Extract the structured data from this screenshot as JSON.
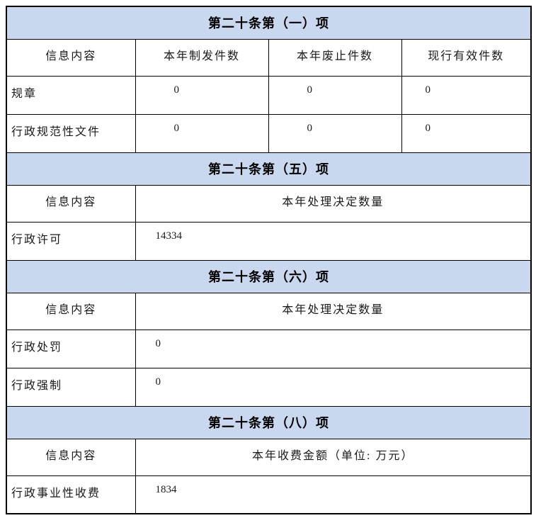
{
  "table": {
    "colors": {
      "section_header_bg": "#C9D8EF",
      "border": "#000000",
      "text": "#1A1A1A"
    },
    "sections": [
      {
        "title": "第二十条第（一）项",
        "columns": [
          "信息内容",
          "本年制发件数",
          "本年废止件数",
          "现行有效件数"
        ],
        "rows": [
          {
            "label": "规章",
            "values": [
              "0",
              "0",
              "0"
            ]
          },
          {
            "label": "行政规范性文件",
            "values": [
              "0",
              "0",
              "0"
            ]
          }
        ]
      },
      {
        "title": "第二十条第（五）项",
        "columns": [
          "信息内容",
          "本年处理决定数量"
        ],
        "rows": [
          {
            "label": "行政许可",
            "values": [
              "14334"
            ]
          }
        ]
      },
      {
        "title": "第二十条第（六）项",
        "columns": [
          "信息内容",
          "本年处理决定数量"
        ],
        "rows": [
          {
            "label": "行政处罚",
            "values": [
              "0"
            ]
          },
          {
            "label": "行政强制",
            "values": [
              "0"
            ]
          }
        ]
      },
      {
        "title": "第二十条第（八）项",
        "columns": [
          "信息内容",
          "本年收费金额（单位: 万元）"
        ],
        "rows": [
          {
            "label": "行政事业性收费",
            "values": [
              "1834"
            ]
          }
        ]
      }
    ]
  }
}
